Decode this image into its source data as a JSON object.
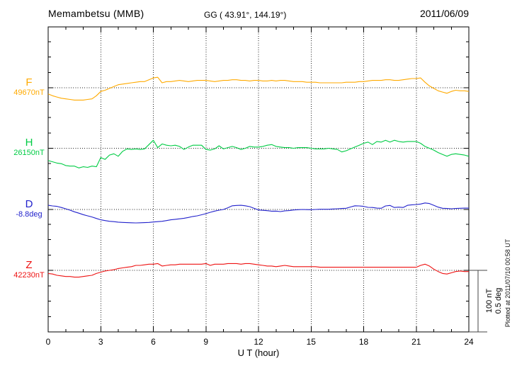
{
  "header": {
    "station_title": "Memambetsu (MMB)",
    "gg_coords": "GG ( 43.91°, 144.19°)",
    "date": "2011/06/09"
  },
  "x_axis": {
    "label": "U T (hour)",
    "tick_labels": [
      "0",
      "3",
      "6",
      "9",
      "12",
      "15",
      "18",
      "21",
      "24"
    ]
  },
  "scale_bar": {
    "nT_label": "100 nT",
    "deg_label": "0.5 deg",
    "nT": 100,
    "deg": 0.5
  },
  "plot_note": "Plotted at 2011/07/10 00:58 UT",
  "chart_data": {
    "type": "line",
    "title": "Memambetsu (MMB) magnetogram",
    "subtitle": "GG ( 43.91°, 144.19°)  2011/06/09",
    "xlabel": "U T (hour)",
    "x_range": [
      0,
      24
    ],
    "x_tick_major_every_hours": 3,
    "x_tick_minor_every_hours": 1,
    "grid": "dotted vertical every 3 h, dotted horizontal at each component baseline",
    "legend_position": "left baseline labels",
    "x_start": 0,
    "x_step": 0.25,
    "series": [
      {
        "name": "F",
        "unit": "nT",
        "base": 49670,
        "base_label": "49670nT",
        "color": "#FFAA00",
        "values": [
          49660,
          49657,
          49655,
          49653,
          49652,
          49651,
          49650,
          49650,
          49650,
          49651,
          49652,
          49657,
          49664,
          49666,
          49669,
          49672,
          49675,
          49676,
          49677,
          49678,
          49679,
          49680,
          49680,
          49683,
          49686,
          49687,
          49678,
          49680,
          49680,
          49681,
          49682,
          49681,
          49680,
          49681,
          49682,
          49682,
          49682,
          49681,
          49680,
          49681,
          49682,
          49682,
          49683,
          49683,
          49682,
          49682,
          49681,
          49682,
          49682,
          49681,
          49681,
          49682,
          49681,
          49682,
          49682,
          49681,
          49680,
          49680,
          49680,
          49679,
          49679,
          49679,
          49678,
          49678,
          49678,
          49678,
          49678,
          49678,
          49679,
          49679,
          49679,
          49680,
          49680,
          49681,
          49682,
          49682,
          49682,
          49683,
          49683,
          49682,
          49682,
          49683,
          49684,
          49685,
          49685,
          49686,
          49679,
          49673,
          49669,
          49665,
          49663,
          49661,
          49664,
          49666,
          49665,
          49665,
          49664
        ]
      },
      {
        "name": "H",
        "unit": "nT",
        "base": 26150,
        "base_label": "26150nT",
        "color": "#00CC44",
        "values": [
          26130,
          26128,
          26126,
          26125,
          26122,
          26121,
          26121,
          26118,
          26120,
          26119,
          26121,
          26120,
          26135,
          26132,
          26139,
          26141,
          26137,
          26145,
          26149,
          26148,
          26149,
          26148,
          26149,
          26156,
          26163,
          26151,
          26157,
          26155,
          26154,
          26155,
          26153,
          26148,
          26152,
          26155,
          26155,
          26155,
          26148,
          26147,
          26149,
          26154,
          26149,
          26151,
          26153,
          26151,
          26148,
          26150,
          26153,
          26152,
          26152,
          26153,
          26155,
          26156,
          26153,
          26152,
          26151,
          26151,
          26150,
          26151,
          26151,
          26151,
          26150,
          26149,
          26149,
          26149,
          26150,
          26149,
          26148,
          26144,
          26146,
          26149,
          26152,
          26155,
          26158,
          26160,
          26156,
          26161,
          26160,
          26163,
          26160,
          26163,
          26161,
          26160,
          26161,
          26161,
          26161,
          26158,
          26153,
          26150,
          26147,
          26143,
          26140,
          26137,
          26140,
          26141,
          26140,
          26139,
          26137
        ]
      },
      {
        "name": "D",
        "unit": "deg",
        "base": -8.8,
        "base_label": "-8.8deg",
        "color": "#2222CC",
        "values": [
          -8.766,
          -8.771,
          -8.775,
          -8.784,
          -8.794,
          -8.806,
          -8.819,
          -8.83,
          -8.842,
          -8.852,
          -8.861,
          -8.873,
          -8.884,
          -8.89,
          -8.896,
          -8.899,
          -8.903,
          -8.905,
          -8.907,
          -8.908,
          -8.909,
          -8.908,
          -8.907,
          -8.905,
          -8.902,
          -8.899,
          -8.896,
          -8.89,
          -8.884,
          -8.88,
          -8.876,
          -8.871,
          -8.865,
          -8.857,
          -8.852,
          -8.843,
          -8.834,
          -8.823,
          -8.813,
          -8.806,
          -8.8,
          -8.786,
          -8.77,
          -8.767,
          -8.766,
          -8.77,
          -8.777,
          -8.791,
          -8.804,
          -8.807,
          -8.81,
          -8.814,
          -8.813,
          -8.817,
          -8.811,
          -8.809,
          -8.804,
          -8.802,
          -8.8,
          -8.801,
          -8.802,
          -8.8,
          -8.798,
          -8.798,
          -8.798,
          -8.796,
          -8.794,
          -8.792,
          -8.79,
          -8.78,
          -8.77,
          -8.771,
          -8.775,
          -8.783,
          -8.784,
          -8.789,
          -8.79,
          -8.771,
          -8.767,
          -8.784,
          -8.781,
          -8.784,
          -8.766,
          -8.762,
          -8.76,
          -8.756,
          -8.747,
          -8.752,
          -8.766,
          -8.781,
          -8.79,
          -8.792,
          -8.794,
          -8.792,
          -8.79,
          -8.789,
          -8.789
        ]
      },
      {
        "name": "Z",
        "unit": "nT",
        "base": 42230,
        "base_label": "42230nT",
        "color": "#EE1111",
        "values": [
          42225,
          42224,
          42222,
          42221,
          42220,
          42220,
          42219,
          42219,
          42220,
          42221,
          42222,
          42225,
          42227,
          42229,
          42230,
          42231,
          42233,
          42234,
          42235,
          42236,
          42238,
          42238,
          42239,
          42240,
          42240,
          42241,
          42237,
          42238,
          42239,
          42239,
          42240,
          42240,
          42240,
          42240,
          42240,
          42240,
          42241,
          42238,
          42240,
          42240,
          42240,
          42241,
          42241,
          42241,
          42240,
          42241,
          42241,
          42240,
          42239,
          42238,
          42237,
          42237,
          42236,
          42237,
          42238,
          42237,
          42236,
          42236,
          42236,
          42236,
          42236,
          42236,
          42235,
          42235,
          42235,
          42235,
          42235,
          42235,
          42235,
          42235,
          42235,
          42235,
          42235,
          42235,
          42235,
          42235,
          42235,
          42235,
          42235,
          42235,
          42235,
          42235,
          42235,
          42235,
          42235,
          42238,
          42240,
          42237,
          42232,
          42228,
          42225,
          42224,
          42226,
          42228,
          42229,
          42228,
          42228
        ]
      }
    ]
  }
}
